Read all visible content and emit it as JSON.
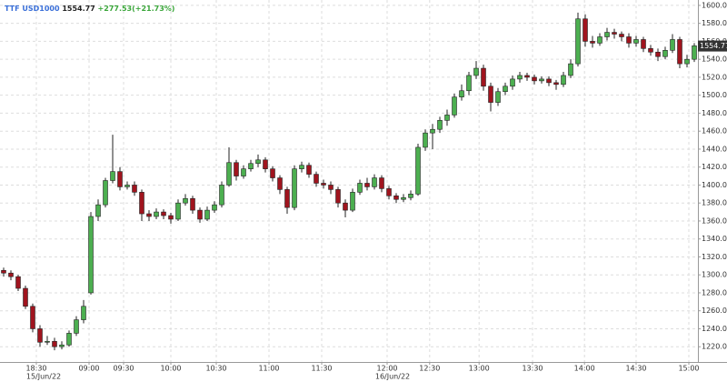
{
  "header": {
    "symbol": "TTF USD1000",
    "last": "1554.77",
    "change": "+277.53(+21.73%)"
  },
  "chart_data": {
    "type": "candlestick",
    "x": [
      0,
      1,
      2,
      3,
      4,
      5,
      6,
      7,
      8,
      9,
      10,
      11,
      12,
      13,
      14,
      15,
      16,
      17,
      18,
      19,
      20,
      21,
      22,
      23,
      24,
      25,
      26,
      27,
      28,
      29,
      30,
      31,
      32,
      33,
      34,
      35,
      36,
      37,
      38,
      39,
      40,
      41,
      42,
      43,
      44,
      45,
      46,
      47,
      48,
      49,
      50,
      51,
      52,
      53,
      54,
      55,
      56,
      57,
      58,
      59,
      60,
      61,
      62,
      63,
      64,
      65,
      66,
      67,
      68,
      69,
      70,
      71,
      72,
      73,
      74,
      75,
      76,
      77,
      78,
      79,
      80,
      81,
      82,
      83,
      84,
      85,
      86,
      87,
      88,
      89,
      90,
      91,
      92,
      93,
      94,
      95
    ],
    "open": [
      1305,
      1302,
      1298,
      1285,
      1265,
      1240,
      1225,
      1226,
      1220,
      1222,
      1235,
      1250,
      1280,
      1365,
      1378,
      1405,
      1415,
      1398,
      1400,
      1392,
      1368,
      1365,
      1370,
      1366,
      1362,
      1380,
      1385,
      1372,
      1362,
      1372,
      1378,
      1400,
      1425,
      1410,
      1418,
      1424,
      1428,
      1418,
      1408,
      1395,
      1375,
      1418,
      1422,
      1412,
      1402,
      1400,
      1395,
      1380,
      1372,
      1392,
      1402,
      1398,
      1408,
      1396,
      1388,
      1384,
      1386,
      1390,
      1442,
      1458,
      1462,
      1472,
      1478,
      1498,
      1505,
      1522,
      1530,
      1510,
      1492,
      1504,
      1510,
      1518,
      1522,
      1520,
      1516,
      1518,
      1514,
      1512,
      1522,
      1535,
      1585,
      1560,
      1558,
      1565,
      1570,
      1568,
      1565,
      1558,
      1562,
      1552,
      1548,
      1543,
      1550,
      1562,
      1535,
      1540
    ],
    "high": [
      1308,
      1305,
      1300,
      1288,
      1268,
      1244,
      1232,
      1230,
      1226,
      1238,
      1254,
      1272,
      1370,
      1384,
      1408,
      1456,
      1420,
      1404,
      1404,
      1395,
      1372,
      1374,
      1373,
      1369,
      1384,
      1390,
      1388,
      1375,
      1376,
      1382,
      1404,
      1442,
      1428,
      1422,
      1428,
      1434,
      1431,
      1421,
      1411,
      1398,
      1422,
      1426,
      1425,
      1415,
      1406,
      1404,
      1398,
      1384,
      1396,
      1406,
      1408,
      1412,
      1411,
      1399,
      1391,
      1390,
      1394,
      1446,
      1462,
      1468,
      1476,
      1484,
      1502,
      1512,
      1526,
      1538,
      1534,
      1514,
      1508,
      1514,
      1522,
      1526,
      1525,
      1523,
      1521,
      1521,
      1517,
      1526,
      1540,
      1592,
      1590,
      1566,
      1569,
      1575,
      1574,
      1571,
      1569,
      1566,
      1565,
      1556,
      1552,
      1554,
      1568,
      1565,
      1545,
      1558
    ],
    "low": [
      1298,
      1294,
      1282,
      1262,
      1236,
      1220,
      1222,
      1216,
      1217,
      1220,
      1232,
      1246,
      1278,
      1360,
      1375,
      1402,
      1394,
      1395,
      1388,
      1360,
      1360,
      1362,
      1362,
      1357,
      1360,
      1377,
      1368,
      1358,
      1360,
      1369,
      1375,
      1398,
      1405,
      1407,
      1415,
      1420,
      1414,
      1404,
      1390,
      1368,
      1372,
      1414,
      1408,
      1398,
      1396,
      1390,
      1375,
      1364,
      1370,
      1389,
      1394,
      1395,
      1392,
      1384,
      1380,
      1381,
      1383,
      1388,
      1438,
      1440,
      1458,
      1466,
      1475,
      1494,
      1500,
      1518,
      1505,
      1482,
      1488,
      1500,
      1506,
      1514,
      1516,
      1512,
      1513,
      1510,
      1506,
      1509,
      1519,
      1532,
      1554,
      1553,
      1555,
      1561,
      1563,
      1560,
      1553,
      1554,
      1548,
      1544,
      1538,
      1540,
      1547,
      1530,
      1531,
      1537
    ],
    "close": [
      1302,
      1298,
      1285,
      1265,
      1240,
      1225,
      1226,
      1220,
      1222,
      1235,
      1250,
      1265,
      1365,
      1378,
      1405,
      1415,
      1398,
      1400,
      1392,
      1368,
      1365,
      1370,
      1366,
      1362,
      1380,
      1385,
      1372,
      1362,
      1372,
      1378,
      1400,
      1425,
      1410,
      1418,
      1424,
      1428,
      1418,
      1408,
      1395,
      1375,
      1418,
      1422,
      1412,
      1402,
      1400,
      1395,
      1380,
      1372,
      1392,
      1402,
      1398,
      1408,
      1396,
      1388,
      1384,
      1386,
      1390,
      1442,
      1458,
      1462,
      1472,
      1478,
      1498,
      1505,
      1522,
      1530,
      1510,
      1492,
      1504,
      1510,
      1518,
      1522,
      1520,
      1516,
      1518,
      1514,
      1512,
      1522,
      1535,
      1585,
      1560,
      1558,
      1565,
      1570,
      1568,
      1565,
      1558,
      1562,
      1552,
      1548,
      1543,
      1550,
      1562,
      1535,
      1540,
      1555
    ],
    "up_color": "#4caf50",
    "down_color": "#a0141e",
    "xlim": [
      -0.5,
      95.5
    ],
    "xticks": [
      {
        "value": 4.5,
        "label": "18:30"
      },
      {
        "value": 11.75,
        "label": "09:00"
      },
      {
        "value": 16.5,
        "label": "09:30"
      },
      {
        "value": 23,
        "label": "10:00"
      },
      {
        "value": 29.25,
        "label": "10:30"
      },
      {
        "value": 36.5,
        "label": "11:00"
      },
      {
        "value": 43.75,
        "label": "11:30"
      },
      {
        "value": 52.75,
        "label": "12:00"
      },
      {
        "value": 58.6,
        "label": "12:30"
      },
      {
        "value": 65.4,
        "label": "13:00"
      },
      {
        "value": 72.75,
        "label": "13:30"
      },
      {
        "value": 79.9,
        "label": "14:00"
      },
      {
        "value": 87,
        "label": "14:30"
      },
      {
        "value": 94.25,
        "label": "15:00"
      }
    ],
    "date_labels": [
      {
        "value": 5.5,
        "label": "15/Jun/22"
      },
      {
        "value": 53.5,
        "label": "16/Jun/22"
      }
    ],
    "ylim": [
      1203,
      1606
    ],
    "yticks": [
      {
        "value": 1220,
        "label": "1220.00"
      },
      {
        "value": 1240,
        "label": "1240.00"
      },
      {
        "value": 1260,
        "label": "1260.00"
      },
      {
        "value": 1280,
        "label": "1280.00"
      },
      {
        "value": 1300,
        "label": "1300.00"
      },
      {
        "value": 1320,
        "label": "1320.00"
      },
      {
        "value": 1340,
        "label": "1340.00"
      },
      {
        "value": 1360,
        "label": "1360.00"
      },
      {
        "value": 1380,
        "label": "1380.00"
      },
      {
        "value": 1400,
        "label": "1400.00"
      },
      {
        "value": 1420,
        "label": "1420.00"
      },
      {
        "value": 1440,
        "label": "1440.00"
      },
      {
        "value": 1460,
        "label": "1460.00"
      },
      {
        "value": 1480,
        "label": "1480.00"
      },
      {
        "value": 1500,
        "label": "1500.00"
      },
      {
        "value": 1520,
        "label": "1520.00"
      },
      {
        "value": 1540,
        "label": "1540.00"
      },
      {
        "value": 1560,
        "label": "1560.00"
      },
      {
        "value": 1580,
        "label": "1580.00"
      },
      {
        "value": 1600,
        "label": "1600.00"
      }
    ],
    "last_price": 1554.77,
    "grid": true
  }
}
